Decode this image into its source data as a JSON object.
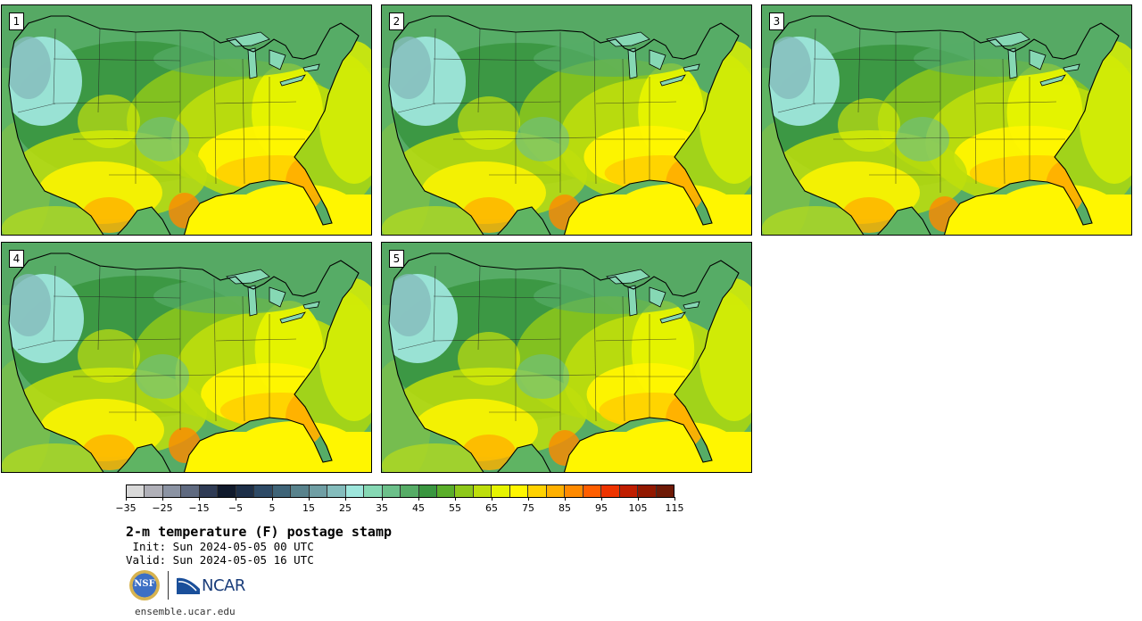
{
  "panels": [
    {
      "label": "1",
      "variant": 0
    },
    {
      "label": "2",
      "variant": 1
    },
    {
      "label": "3",
      "variant": 2
    },
    {
      "label": "4",
      "variant": 3
    },
    {
      "label": "5",
      "variant": 4
    }
  ],
  "colorbar": {
    "colors": [
      "#d9d9d9",
      "#b0b0b8",
      "#8b93a3",
      "#5f6a80",
      "#2f3b55",
      "#101a2c",
      "#1d2f48",
      "#2e4a66",
      "#3f6478",
      "#58828c",
      "#6f9ea4",
      "#84bcbc",
      "#9ee6dc",
      "#86d8b4",
      "#6cc08a",
      "#56ac66",
      "#3a9640",
      "#5aae2a",
      "#8ec81a",
      "#bede0c",
      "#e6f400",
      "#fff600",
      "#ffd200",
      "#ffb000",
      "#ff8a00",
      "#ff5e00",
      "#ee3400",
      "#c01e00",
      "#921800",
      "#6e1a06"
    ],
    "tick_labels": [
      "−35",
      "−25",
      "−15",
      "−5",
      "5",
      "15",
      "25",
      "35",
      "45",
      "55",
      "65",
      "75",
      "85",
      "95",
      "105",
      "115"
    ]
  },
  "title": "2-m temperature (F) postage stamp",
  "init": " Init: Sun 2024-05-05 00 UTC",
  "valid": "Valid: Sun 2024-05-05 16 UTC",
  "logos": {
    "nsf_text": "NSF",
    "ncar_text": "NCAR"
  },
  "url": "ensemble.ucar.edu"
}
